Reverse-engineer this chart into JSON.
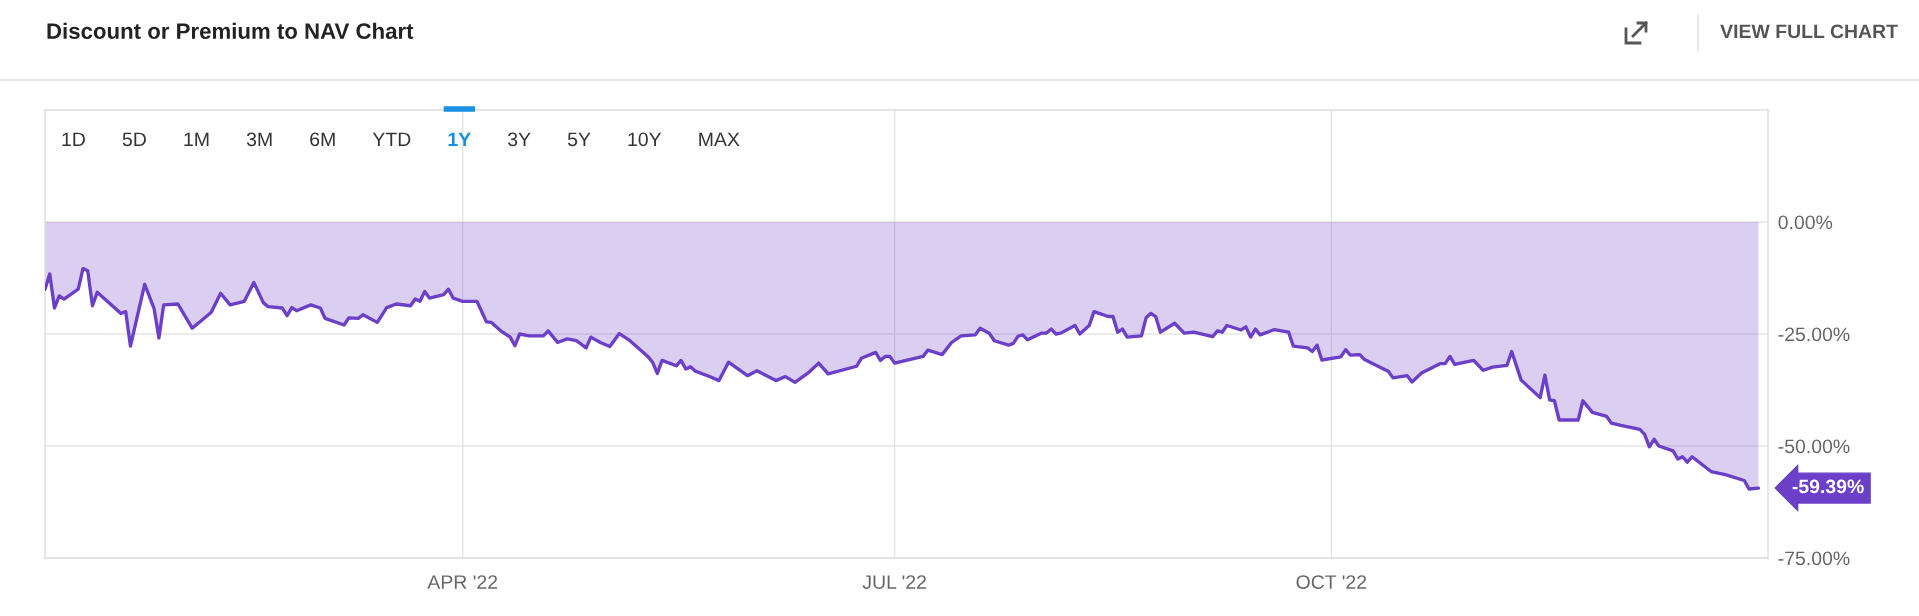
{
  "chart_data": {
    "type": "area",
    "title": "Discount or Premium to NAV Chart",
    "color": "#6b3fc8",
    "x": [
      "2022-01-03",
      "2022-01-04",
      "2022-01-05",
      "2022-01-06",
      "2022-01-07",
      "2022-01-10",
      "2022-01-11",
      "2022-01-12",
      "2022-01-13",
      "2022-01-14",
      "2022-01-19",
      "2022-01-20",
      "2022-01-21",
      "2022-01-24",
      "2022-01-26",
      "2022-01-27",
      "2022-01-28",
      "2022-01-31",
      "2022-02-03",
      "2022-02-07",
      "2022-02-09",
      "2022-02-11",
      "2022-02-14",
      "2022-02-16",
      "2022-02-18",
      "2022-02-19",
      "2022-02-22",
      "2022-02-23",
      "2022-02-24",
      "2022-02-25",
      "2022-02-28",
      "2022-03-02",
      "2022-03-03",
      "2022-03-07",
      "2022-03-08",
      "2022-03-10",
      "2022-03-11",
      "2022-03-14",
      "2022-03-16",
      "2022-03-18",
      "2022-03-21",
      "2022-03-22",
      "2022-03-23",
      "2022-03-24",
      "2022-03-25",
      "2022-03-28",
      "2022-03-29",
      "2022-03-30",
      "2022-04-01",
      "2022-04-04",
      "2022-04-06",
      "2022-04-07",
      "2022-04-09",
      "2022-04-11",
      "2022-04-12",
      "2022-04-13",
      "2022-04-15",
      "2022-04-18",
      "2022-04-19",
      "2022-04-21",
      "2022-04-23",
      "2022-04-25",
      "2022-04-27",
      "2022-04-28",
      "2022-04-30",
      "2022-05-02",
      "2022-05-04",
      "2022-05-06",
      "2022-05-10",
      "2022-05-11",
      "2022-05-12",
      "2022-05-13",
      "2022-05-16",
      "2022-05-17",
      "2022-05-18",
      "2022-05-19",
      "2022-05-20",
      "2022-05-23",
      "2022-05-25",
      "2022-05-27",
      "2022-05-31",
      "2022-06-02",
      "2022-06-06",
      "2022-06-08",
      "2022-06-10",
      "2022-06-13",
      "2022-06-15",
      "2022-06-17",
      "2022-06-23",
      "2022-06-24",
      "2022-06-27",
      "2022-06-28",
      "2022-06-29",
      "2022-06-30",
      "2022-07-01",
      "2022-07-07",
      "2022-07-08",
      "2022-07-11",
      "2022-07-13",
      "2022-07-15",
      "2022-07-18",
      "2022-07-19",
      "2022-07-21",
      "2022-07-22",
      "2022-07-25",
      "2022-07-26",
      "2022-07-27",
      "2022-07-28",
      "2022-07-29",
      "2022-08-01",
      "2022-08-02",
      "2022-08-03",
      "2022-08-04",
      "2022-08-05",
      "2022-08-08",
      "2022-08-09",
      "2022-08-11",
      "2022-08-12",
      "2022-08-15",
      "2022-08-16",
      "2022-08-17",
      "2022-08-18",
      "2022-08-19",
      "2022-08-22",
      "2022-08-23",
      "2022-08-24",
      "2022-08-25",
      "2022-08-26",
      "2022-08-29",
      "2022-08-31",
      "2022-09-02",
      "2022-09-06",
      "2022-09-07",
      "2022-09-08",
      "2022-09-09",
      "2022-09-12",
      "2022-09-13",
      "2022-09-14",
      "2022-09-15",
      "2022-09-16",
      "2022-09-19",
      "2022-09-22",
      "2022-09-23",
      "2022-09-26",
      "2022-09-27",
      "2022-09-28",
      "2022-09-29",
      "2022-10-03",
      "2022-10-04",
      "2022-10-05",
      "2022-10-07",
      "2022-10-08",
      "2022-10-12",
      "2022-10-13",
      "2022-10-14",
      "2022-10-17",
      "2022-10-18",
      "2022-10-20",
      "2022-10-24",
      "2022-10-25",
      "2022-10-26",
      "2022-10-27",
      "2022-10-31",
      "2022-11-02",
      "2022-11-04",
      "2022-11-07",
      "2022-11-08",
      "2022-11-10",
      "2022-11-14",
      "2022-11-15",
      "2022-11-16",
      "2022-11-17",
      "2022-11-18",
      "2022-11-22",
      "2022-11-23",
      "2022-11-25",
      "2022-11-28",
      "2022-11-29",
      "2022-12-01",
      "2022-12-05",
      "2022-12-06",
      "2022-12-07",
      "2022-12-08",
      "2022-12-09",
      "2022-12-12",
      "2022-12-13",
      "2022-12-14",
      "2022-12-15",
      "2022-12-16",
      "2022-12-20",
      "2022-12-23",
      "2022-12-27",
      "2022-12-28",
      "2022-12-30"
    ],
    "values": [
      -15.0,
      -11.6,
      -19.2,
      -16.5,
      -17.2,
      -15.0,
      -10.4,
      -10.9,
      -18.7,
      -15.7,
      -20.4,
      -20.0,
      -27.7,
      -13.9,
      -19.4,
      -25.9,
      -18.5,
      -18.3,
      -23.7,
      -20.2,
      -15.9,
      -18.5,
      -17.7,
      -13.5,
      -18.0,
      -18.9,
      -19.2,
      -20.9,
      -19.1,
      -19.8,
      -18.5,
      -19.2,
      -21.5,
      -23.0,
      -21.4,
      -21.5,
      -20.7,
      -22.4,
      -19.1,
      -18.3,
      -18.7,
      -17.2,
      -17.7,
      -15.5,
      -17.0,
      -16.2,
      -15.0,
      -17.0,
      -17.7,
      -17.7,
      -22.3,
      -22.4,
      -24.3,
      -25.7,
      -27.6,
      -25.0,
      -25.4,
      -25.4,
      -24.3,
      -26.9,
      -26.1,
      -26.5,
      -28.1,
      -25.7,
      -26.9,
      -27.8,
      -24.9,
      -26.3,
      -30.0,
      -31.3,
      -33.8,
      -30.9,
      -32.1,
      -30.9,
      -32.8,
      -32.3,
      -33.3,
      -34.5,
      -35.4,
      -31.3,
      -34.3,
      -33.2,
      -35.4,
      -34.5,
      -35.8,
      -33.5,
      -31.5,
      -33.9,
      -32.2,
      -30.4,
      -29.1,
      -30.9,
      -30.0,
      -30.0,
      -31.5,
      -30.0,
      -28.6,
      -29.6,
      -26.9,
      -25.4,
      -25.2,
      -23.7,
      -24.9,
      -26.5,
      -27.5,
      -27.1,
      -25.5,
      -25.2,
      -26.3,
      -24.8,
      -24.8,
      -23.9,
      -25.0,
      -24.8,
      -23.1,
      -25.0,
      -23.1,
      -20.0,
      -21.1,
      -21.1,
      -24.6,
      -23.9,
      -25.7,
      -25.4,
      -21.3,
      -20.4,
      -21.1,
      -24.6,
      -22.6,
      -24.8,
      -24.6,
      -25.6,
      -24.3,
      -24.6,
      -23.1,
      -24.1,
      -23.4,
      -25.7,
      -23.9,
      -25.2,
      -24.0,
      -24.6,
      -27.7,
      -28.1,
      -28.9,
      -27.5,
      -30.8,
      -30.1,
      -28.5,
      -29.7,
      -29.6,
      -30.7,
      -32.8,
      -33.3,
      -34.8,
      -34.3,
      -35.7,
      -33.7,
      -31.6,
      -31.6,
      -30.0,
      -31.8,
      -30.9,
      -33.1,
      -32.4,
      -32.0,
      -28.9,
      -35.3,
      -39.2,
      -34.2,
      -39.7,
      -39.9,
      -44.2,
      -44.2,
      -39.9,
      -42.5,
      -43.4,
      -44.9,
      -45.4,
      -46.3,
      -47.4,
      -50.2,
      -48.5,
      -50.0,
      -51.1,
      -52.9,
      -52.4,
      -53.6,
      -52.4,
      -55.7,
      -56.4,
      -57.7,
      -59.6,
      -59.39
    ],
    "xlim": [
      "2022-01-03",
      "2023-01-01"
    ],
    "ylim": [
      -75,
      25
    ],
    "xticks": [
      {
        "value": "2022-04-01",
        "label": "APR '22"
      },
      {
        "value": "2022-07-01",
        "label": "JUL '22"
      },
      {
        "value": "2022-10-01",
        "label": "OCT '22"
      }
    ],
    "yticks": [
      {
        "value": 0,
        "label": "0.00%"
      },
      {
        "value": -25,
        "label": "-25.00%"
      },
      {
        "value": -50,
        "label": "-50.00%"
      },
      {
        "value": -75,
        "label": "-75.00%"
      }
    ],
    "grid": true,
    "annotations": [
      "VIEW FULL CHART",
      "1D",
      "5D",
      "1M",
      "3M",
      "6M",
      "YTD",
      "1Y",
      "3Y",
      "5Y",
      "10Y",
      "MAX",
      {
        "text": "-59.39%",
        "x": "2022-12-30",
        "y": -59.39
      }
    ]
  }
}
